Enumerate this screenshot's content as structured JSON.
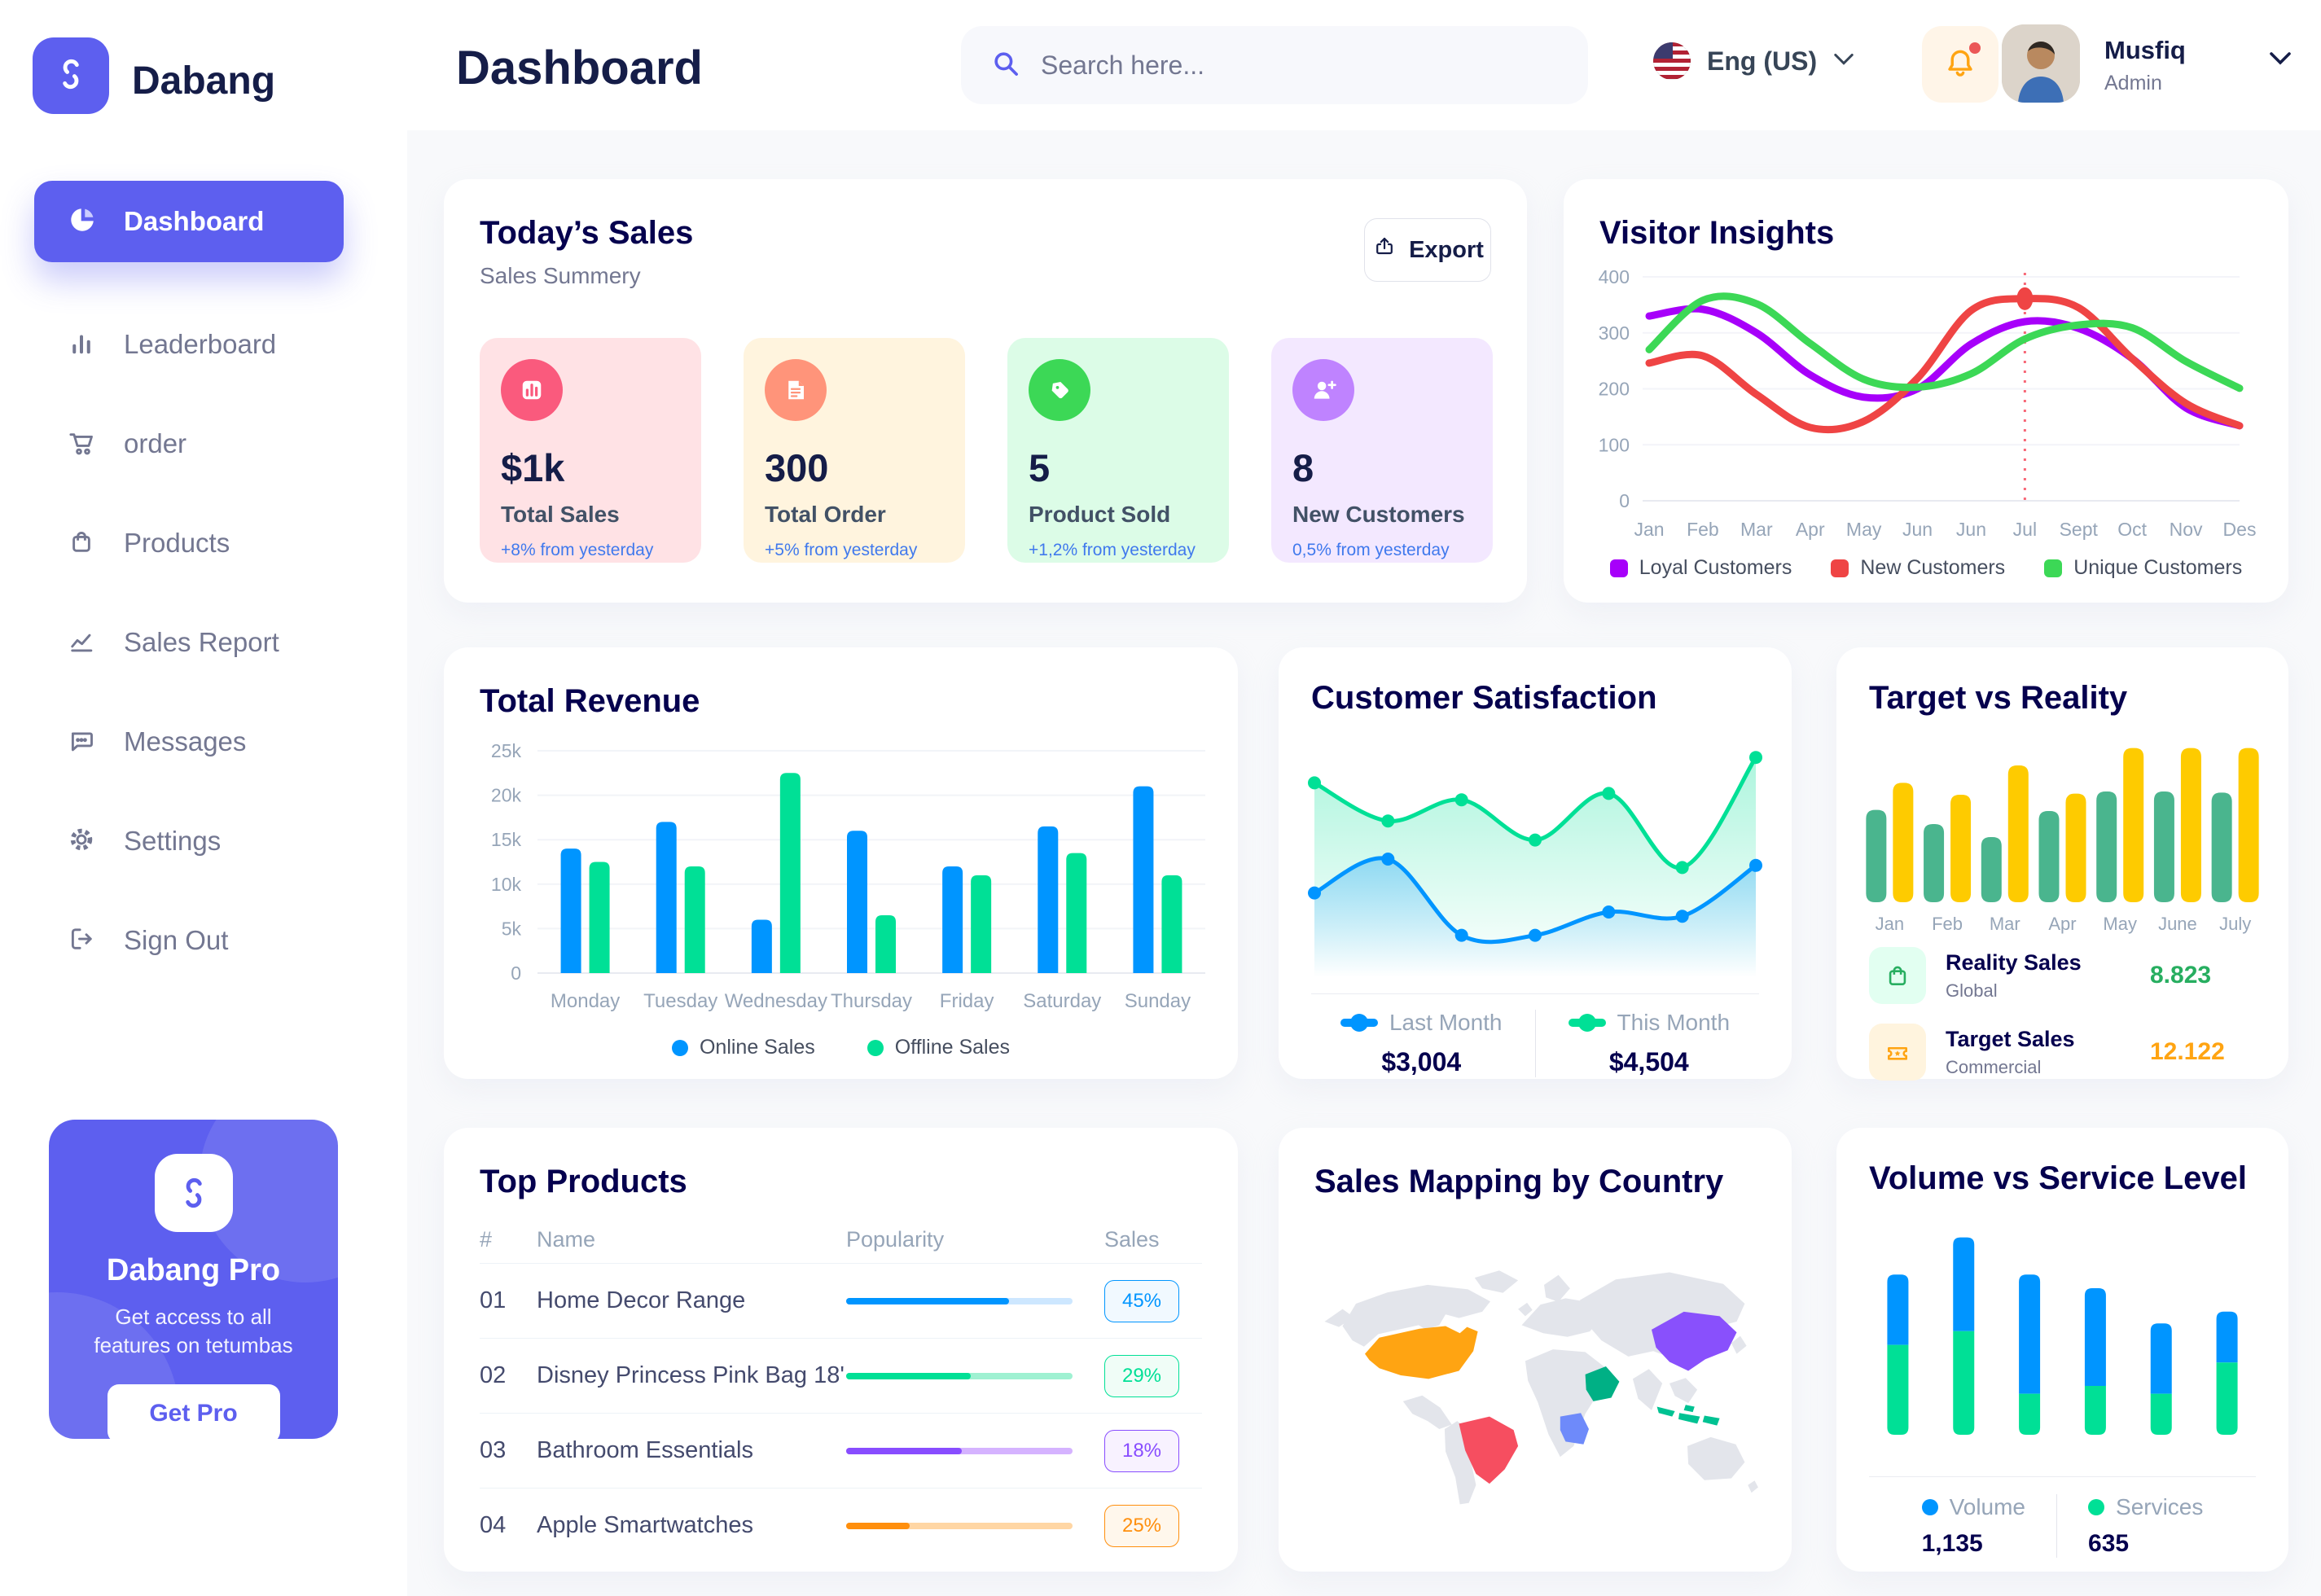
{
  "brand": {
    "name": "Dabang"
  },
  "header": {
    "page_title": "Dashboard",
    "search_placeholder": "Search here...",
    "language": "Eng (US)",
    "user_name": "Musfiq",
    "user_role": "Admin"
  },
  "sidebar": {
    "items": [
      {
        "label": "Dashboard",
        "active": true
      },
      {
        "label": "Leaderboard"
      },
      {
        "label": "order"
      },
      {
        "label": "Products"
      },
      {
        "label": "Sales Report"
      },
      {
        "label": "Messages"
      },
      {
        "label": "Settings"
      },
      {
        "label": "Sign Out"
      }
    ],
    "pro": {
      "title": "Dabang Pro",
      "description": "Get access to all features on tetumbas",
      "button": "Get Pro"
    }
  },
  "today_sales": {
    "title": "Today’s Sales",
    "subtitle": "Sales Summery",
    "export_label": "Export",
    "stats": [
      {
        "value": "$1k",
        "label": "Total Sales",
        "change": "+8% from yesterday",
        "bg": "#FFE2E5",
        "icon_bg": "#FA5A7D",
        "icon": "bar-chart-icon"
      },
      {
        "value": "300",
        "label": "Total Order",
        "change": "+5% from yesterday",
        "bg": "#FFF4DE",
        "icon_bg": "#FF947A",
        "icon": "receipt-icon"
      },
      {
        "value": "5",
        "label": "Product Sold",
        "change": "+1,2% from yesterday",
        "bg": "#DCFCE7",
        "icon_bg": "#3CD856",
        "icon": "tag-icon"
      },
      {
        "value": "8",
        "label": "New Customers",
        "change": "0,5% from yesterday",
        "bg": "#F3E8FF",
        "icon_bg": "#BF83FF",
        "icon": "user-plus-icon"
      }
    ]
  },
  "charts": {
    "visitor_insights": {
      "type": "line",
      "title": "Visitor Insights",
      "categories": [
        "Jan",
        "Feb",
        "Mar",
        "Apr",
        "May",
        "Jun",
        "Jun",
        "Jul",
        "Sept",
        "Oct",
        "Nov",
        "Des"
      ],
      "yticks": [
        0,
        100,
        200,
        300,
        400
      ],
      "ylim": [
        0,
        400
      ],
      "series": [
        {
          "name": "Loyal Customers",
          "color": "#A700FA",
          "values": [
            330,
            342,
            300,
            225,
            185,
            200,
            280,
            320,
            308,
            254,
            166,
            134
          ]
        },
        {
          "name": "New Customers",
          "color": "#EF4444",
          "values": [
            246,
            259,
            190,
            131,
            142,
            219,
            340,
            361,
            345,
            254,
            174,
            134
          ]
        },
        {
          "name": "Unique Customers",
          "color": "#3CD856",
          "values": [
            270,
            358,
            352,
            281,
            217,
            203,
            227,
            289,
            314,
            309,
            249,
            201
          ]
        }
      ],
      "highlight": {
        "series": 1,
        "index": 7
      }
    },
    "total_revenue": {
      "type": "bar",
      "title": "Total Revenue",
      "categories": [
        "Monday",
        "Tuesday",
        "Wednesday",
        "Thursday",
        "Friday",
        "Saturday",
        "Sunday"
      ],
      "ytick_labels": [
        "0",
        "5k",
        "10k",
        "15k",
        "20k",
        "25k"
      ],
      "ymax": 25,
      "series": [
        {
          "name": "Online Sales",
          "color": "#0095FF",
          "values": [
            14,
            17,
            6,
            16,
            12,
            16.5,
            21
          ]
        },
        {
          "name": "Offline Sales",
          "color": "#00E096",
          "values": [
            12.5,
            12,
            22.5,
            6.5,
            11,
            13.5,
            11
          ]
        }
      ]
    },
    "customer_satisfaction": {
      "type": "area",
      "title": "Customer Satisfaction",
      "ylim": [
        0,
        110
      ],
      "series": [
        {
          "name": "Last Month",
          "color": "#0095FF",
          "value_label": "$3,004",
          "values": [
            34,
            50,
            14,
            14,
            25,
            23,
            47
          ]
        },
        {
          "name": "This Month",
          "color": "#00E096",
          "value_label": "$4,504",
          "values": [
            86,
            68,
            78,
            59,
            81,
            46,
            98
          ]
        }
      ]
    },
    "target_vs_reality": {
      "type": "bar",
      "title": "Target vs Reality",
      "categories": [
        "Jan",
        "Feb",
        "Mar",
        "Apr",
        "May",
        "June",
        "July"
      ],
      "ymax": 15,
      "series": [
        {
          "name": "Reality Sales",
          "subtitle": "Global",
          "color": "#4AB58E",
          "value": "8.823",
          "value_color": "#27AE60"
        },
        {
          "name": "Target Sales",
          "subtitle": "Commercial",
          "color": "#FECB00",
          "value": "12.122",
          "value_color": "#FFA412"
        }
      ],
      "reality_values": [
        8.5,
        7.2,
        6,
        8.4,
        10.2,
        10.2,
        10.1
      ],
      "target_values": [
        11,
        9.9,
        12.6,
        10,
        14.2,
        14.2,
        14.2
      ]
    },
    "volume_service": {
      "type": "stacked-bar",
      "title": "Volume vs Service Level",
      "series": [
        {
          "name": "Volume",
          "color": "#0095FF",
          "total": "1,135",
          "values": [
            36,
            48,
            61,
            50,
            36,
            26
          ]
        },
        {
          "name": "Services",
          "color": "#00E096",
          "total": "635",
          "values": [
            46,
            53,
            21,
            25,
            21,
            37
          ]
        }
      ]
    }
  },
  "top_products": {
    "title": "Top Products",
    "header": {
      "num": "#",
      "name": "Name",
      "popularity": "Popularity",
      "sales": "Sales"
    },
    "rows": [
      {
        "num": "01",
        "name": "Home Decor Range",
        "bar": 72,
        "sales": "45%",
        "color": "#0095FF",
        "track": "#CDE7FF",
        "badge_bg": "#F1F9FF"
      },
      {
        "num": "02",
        "name": "Disney Princess Pink Bag 18'",
        "bar": 55,
        "sales": "29%",
        "color": "#00E096",
        "track": "#9FF1D2",
        "badge_bg": "#F0FDF7"
      },
      {
        "num": "03",
        "name": "Bathroom Essentials",
        "bar": 51,
        "sales": "18%",
        "color": "#884DFF",
        "track": "#D5B3FF",
        "badge_bg": "#F8F2FF"
      },
      {
        "num": "04",
        "name": "Apple Smartwatches",
        "bar": 28,
        "sales": "25%",
        "color": "#FF8F0D",
        "track": "#FFD6A4",
        "badge_bg": "#FFF7EC"
      }
    ]
  },
  "sales_map": {
    "title": "Sales Mapping by Country",
    "countries": [
      {
        "key": "usa",
        "name": "United States",
        "color": "#FFA412"
      },
      {
        "key": "brazil",
        "name": "Brazil",
        "color": "#F64E60"
      },
      {
        "key": "saudi",
        "name": "Saudi Arabia",
        "color": "#00B085"
      },
      {
        "key": "congo",
        "name": "DR Congo",
        "color": "#6E8AFA"
      },
      {
        "key": "china",
        "name": "China",
        "color": "#8950FC"
      },
      {
        "key": "indonesia",
        "name": "Indonesia",
        "color": "#00C292"
      }
    ]
  },
  "colors": {
    "primary": "#5D5FEF",
    "heading": "#05004E",
    "muted": "#737791",
    "axis": "#96A5B8",
    "change_blue": "#4079ED"
  }
}
